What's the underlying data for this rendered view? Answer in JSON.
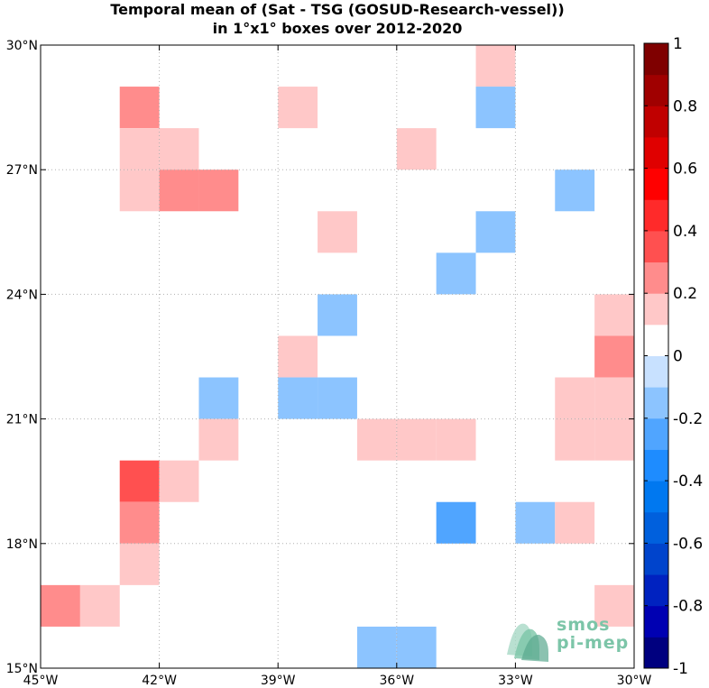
{
  "title": {
    "line1": "Temporal mean of (Sat - TSG (GOSUD-Research-vessel))",
    "line2": "in 1°x1° boxes over 2012-2020"
  },
  "map": {
    "lon_range": [
      -45,
      -30
    ],
    "lat_range": [
      15,
      30
    ],
    "grid": true,
    "x_ticks": [
      {
        "value": -45,
        "label": "45°W"
      },
      {
        "value": -42,
        "label": "42°W"
      },
      {
        "value": -39,
        "label": "39°W"
      },
      {
        "value": -36,
        "label": "36°W"
      },
      {
        "value": -33,
        "label": "33°W"
      },
      {
        "value": -30,
        "label": "30°W"
      }
    ],
    "y_ticks": [
      {
        "value": 15,
        "label": "15°N"
      },
      {
        "value": 18,
        "label": "18°N"
      },
      {
        "value": 21,
        "label": "21°N"
      },
      {
        "value": 24,
        "label": "24°N"
      },
      {
        "value": 27,
        "label": "27°N"
      },
      {
        "value": 30,
        "label": "30°N"
      }
    ],
    "cells": [
      {
        "lon": -34,
        "lat": 29,
        "value": 0.15
      },
      {
        "lon": -43,
        "lat": 28,
        "value": 0.25
      },
      {
        "lon": -39,
        "lat": 28,
        "value": 0.15
      },
      {
        "lon": -34,
        "lat": 28,
        "value": -0.15
      },
      {
        "lon": -43,
        "lat": 27,
        "value": 0.15
      },
      {
        "lon": -42,
        "lat": 27,
        "value": 0.15
      },
      {
        "lon": -36,
        "lat": 27,
        "value": 0.15
      },
      {
        "lon": -43,
        "lat": 26,
        "value": 0.15
      },
      {
        "lon": -42,
        "lat": 26,
        "value": 0.25
      },
      {
        "lon": -41,
        "lat": 26,
        "value": 0.25
      },
      {
        "lon": -32,
        "lat": 26,
        "value": -0.15
      },
      {
        "lon": -38,
        "lat": 25,
        "value": 0.15
      },
      {
        "lon": -34,
        "lat": 25,
        "value": -0.15
      },
      {
        "lon": -35,
        "lat": 24,
        "value": -0.15
      },
      {
        "lon": -38,
        "lat": 23,
        "value": -0.15
      },
      {
        "lon": -31,
        "lat": 23,
        "value": 0.15
      },
      {
        "lon": -39,
        "lat": 22,
        "value": 0.15
      },
      {
        "lon": -31,
        "lat": 22,
        "value": 0.25
      },
      {
        "lon": -41,
        "lat": 21,
        "value": -0.15
      },
      {
        "lon": -39,
        "lat": 21,
        "value": -0.15
      },
      {
        "lon": -38,
        "lat": 21,
        "value": -0.15
      },
      {
        "lon": -32,
        "lat": 21,
        "value": 0.15
      },
      {
        "lon": -31,
        "lat": 21,
        "value": 0.15
      },
      {
        "lon": -41,
        "lat": 20,
        "value": 0.15
      },
      {
        "lon": -37,
        "lat": 20,
        "value": 0.15
      },
      {
        "lon": -36,
        "lat": 20,
        "value": 0.15
      },
      {
        "lon": -35,
        "lat": 20,
        "value": 0.15
      },
      {
        "lon": -32,
        "lat": 20,
        "value": 0.15
      },
      {
        "lon": -31,
        "lat": 20,
        "value": 0.15
      },
      {
        "lon": -43,
        "lat": 19,
        "value": 0.35
      },
      {
        "lon": -42,
        "lat": 19,
        "value": 0.15
      },
      {
        "lon": -43,
        "lat": 18,
        "value": 0.25
      },
      {
        "lon": -35,
        "lat": 18,
        "value": -0.25
      },
      {
        "lon": -33,
        "lat": 18,
        "value": -0.15
      },
      {
        "lon": -32,
        "lat": 18,
        "value": 0.15
      },
      {
        "lon": -43,
        "lat": 17,
        "value": 0.15
      },
      {
        "lon": -45,
        "lat": 16,
        "value": 0.25
      },
      {
        "lon": -44,
        "lat": 16,
        "value": 0.15
      },
      {
        "lon": -31,
        "lat": 16,
        "value": 0.15
      },
      {
        "lon": -37,
        "lat": 15,
        "value": -0.15
      },
      {
        "lon": -36,
        "lat": 15,
        "value": -0.15
      }
    ]
  },
  "colorbar": {
    "range": [
      -1,
      1
    ],
    "bins": 20,
    "ticks": [
      {
        "value": 1,
        "label": "1"
      },
      {
        "value": 0.8,
        "label": "0.8"
      },
      {
        "value": 0.6,
        "label": "0.6"
      },
      {
        "value": 0.4,
        "label": "0.4"
      },
      {
        "value": 0.2,
        "label": "0.2"
      },
      {
        "value": 0,
        "label": "0"
      },
      {
        "value": -0.2,
        "label": "-0.2"
      },
      {
        "value": -0.4,
        "label": "-0.4"
      },
      {
        "value": -0.6,
        "label": "-0.6"
      },
      {
        "value": -0.8,
        "label": "-0.8"
      },
      {
        "value": -1,
        "label": "-1"
      }
    ],
    "colors_low_to_high": [
      "#00007f",
      "#0000b2",
      "#0022c0",
      "#0044cc",
      "#0060dd",
      "#0078f0",
      "#1e8cff",
      "#50a5ff",
      "#8cc4ff",
      "#c8e1ff",
      "#ffffff",
      "#ffc8c8",
      "#ff8c8c",
      "#ff5050",
      "#ff2a2a",
      "#ff0000",
      "#e00000",
      "#c00000",
      "#a00000",
      "#7f0000"
    ]
  },
  "logo": {
    "line1": "smos",
    "line2": "pi-mep"
  }
}
